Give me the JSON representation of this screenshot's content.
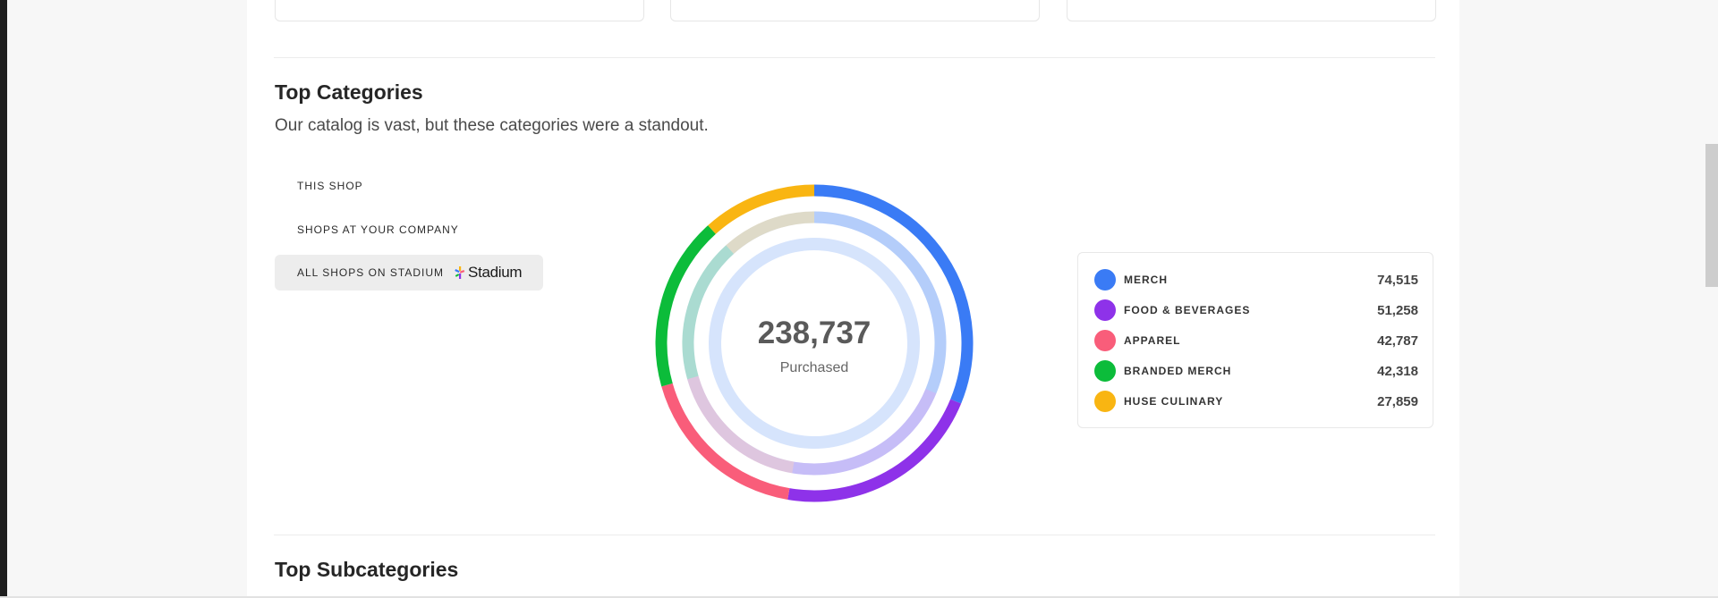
{
  "categories_section": {
    "title": "Top Categories",
    "subtitle": "Our catalog is vast, but these categories were a standout."
  },
  "scope_tabs": [
    {
      "label": "THIS SHOP",
      "active": false
    },
    {
      "label": "SHOPS AT YOUR COMPANY",
      "active": false
    },
    {
      "label": "ALL SHOPS ON STADIUM",
      "active": true,
      "logo": "Stadium"
    }
  ],
  "summary": {
    "total": "238,737",
    "total_label": "Purchased"
  },
  "legend": [
    {
      "name": "MERCH",
      "value": "74,515",
      "color": "#3a7bf5"
    },
    {
      "name": "FOOD & BEVERAGES",
      "value": "51,258",
      "color": "#8e32e9"
    },
    {
      "name": "APPAREL",
      "value": "42,787",
      "color": "#f95d7a"
    },
    {
      "name": "BRANDED MERCH",
      "value": "42,318",
      "color": "#0cbc3a"
    },
    {
      "name": "HUSE CULINARY",
      "value": "27,859",
      "color": "#f9b512"
    }
  ],
  "chart_data": {
    "type": "pie",
    "categories": [
      "MERCH",
      "FOOD & BEVERAGES",
      "APPAREL",
      "BRANDED MERCH",
      "HUSE CULINARY"
    ],
    "values": [
      74515,
      51258,
      42787,
      42318,
      27859
    ],
    "colors": [
      "#3a7bf5",
      "#8e32e9",
      "#f95d7a",
      "#0cbc3a",
      "#f9b512"
    ],
    "total": 238737
  },
  "subcategories_section": {
    "title": "Top Subcategories"
  },
  "colors": {
    "inner_ring": "#d6e4fc",
    "page_background": "#f7f7f7",
    "panel_background": "#ffffff",
    "active_tab": "#ededed"
  }
}
